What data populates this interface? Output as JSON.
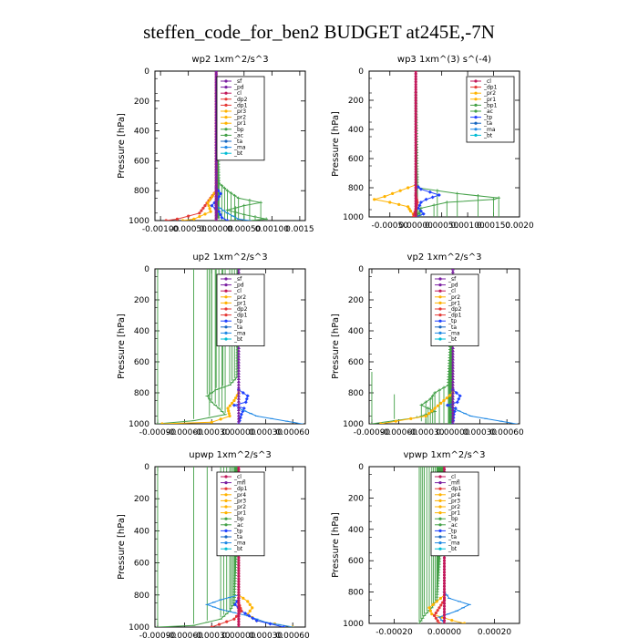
{
  "page_title": "steffen_code_for_ben2  BUDGET at245E,-7N",
  "colors": {
    "sf": "#7a1fa2",
    "pd": "#7a1fa2",
    "cl": "#c2185b",
    "dp": "#e53935",
    "pr": "#ffb300",
    "bp": "#43a047",
    "ac": "#2e7d32",
    "tp": "#1e40ff",
    "ta": "#1565c0",
    "ma": "#1e88e5",
    "bt": "#00bcd4",
    "mfl": "#6a1b9a"
  },
  "chart_data": [
    {
      "id": "wp2",
      "type": "line",
      "title": "wp2   1xm^2/s^3",
      "ylabel": "Pressure [hPa]",
      "ylim": [
        1000,
        0
      ],
      "xlim": [
        -0.0011,
        0.0016
      ],
      "yticks": [
        0,
        200,
        400,
        600,
        800,
        1000
      ],
      "xticks": [
        -0.001,
        -0.0005,
        0,
        0.0005,
        0.001,
        0.0015
      ],
      "xtick_labels": [
        "-0.00100",
        "-0.00050",
        "0.00000",
        "0.00050",
        "0.00100",
        "0.0015"
      ],
      "legend": [
        "_sf",
        "_pd",
        "_cl",
        "_dp2",
        "_dp1",
        "_pr3",
        "_pr2",
        "_pr1",
        "_bp",
        "_ac",
        "_ta",
        "_ma",
        "_bt"
      ],
      "series": [
        {
          "key": "bp",
          "y": [
            150,
            750,
            800,
            850,
            880,
            900,
            930,
            960,
            990,
            1000
          ],
          "x": [
            0,
            5e-05,
            0.0002,
            0.0004,
            0.0008,
            0.0005,
            0.0002,
            0.0005,
            0.0009,
            0.0006
          ]
        },
        {
          "key": "dp",
          "y": [
            800,
            850,
            900,
            950,
            990,
            1000
          ],
          "x": [
            0,
            -0.0001,
            -0.0002,
            -0.0003,
            -0.0007,
            -0.0009
          ]
        },
        {
          "key": "pr",
          "y": [
            800,
            880,
            940,
            990,
            1000
          ],
          "x": [
            0,
            -0.00015,
            -0.0001,
            -0.0004,
            -0.0006
          ]
        },
        {
          "key": "tp",
          "y": [
            780,
            820,
            860,
            900,
            940,
            980,
            1000
          ],
          "x": [
            0,
            8e-05,
            2e-05,
            -8e-05,
            5e-05,
            0.0001,
            0.0002
          ]
        },
        {
          "key": "ma",
          "y": [
            900,
            950,
            990,
            1000
          ],
          "x": [
            0,
            0.0002,
            0.0004,
            0.0006
          ]
        },
        {
          "key": "cl",
          "y": [
            0,
            200,
            400,
            600,
            800,
            1000
          ],
          "x": [
            0,
            0,
            0,
            0,
            0,
            0
          ]
        },
        {
          "key": "sf",
          "y": [
            0,
            200,
            400,
            600,
            800,
            1000
          ],
          "x": [
            0,
            0,
            0,
            0,
            0,
            0
          ]
        }
      ]
    },
    {
      "id": "wp3",
      "type": "line",
      "title": "wp3   1xm^(3) s^(-4)",
      "ylabel": "Pressure [hPa]",
      "ylim": [
        1000,
        0
      ],
      "xlim": [
        -0.0009,
        0.002
      ],
      "yticks": [
        0,
        200,
        400,
        600,
        800,
        1000
      ],
      "xticks": [
        -0.0005,
        0,
        0.0005,
        0.001,
        0.0015,
        0.002
      ],
      "xtick_labels": [
        "-0.00050",
        "0.00000",
        "0.00050",
        "0.00100",
        "0.00150",
        "0.0020"
      ],
      "legend": [
        "_cl",
        "_dp1",
        "_pr2",
        "_pr1",
        "_bp1",
        "_ac",
        "_tp",
        "_ta",
        "_ma",
        "_bt"
      ],
      "series": [
        {
          "key": "bp",
          "y": [
            150,
            800,
            840,
            870,
            880,
            900,
            940,
            980,
            1000
          ],
          "x": [
            0,
            3e-05,
            0.0008,
            0.0016,
            0.0015,
            0.0006,
            0.0001,
            5e-05,
            0
          ],
          "comment": ""
        },
        {
          "key": "pr",
          "y": [
            780,
            820,
            860,
            880,
            900,
            930,
            960,
            1000
          ],
          "x": [
            0,
            -0.0003,
            -0.0006,
            -0.0008,
            -0.0005,
            -0.00015,
            -0.0001,
            0
          ]
        },
        {
          "key": "tp",
          "y": [
            780,
            810,
            850,
            880,
            900,
            940,
            980,
            1000
          ],
          "x": [
            0,
            0.0001,
            0.00045,
            0.0002,
            0.0001,
            5e-05,
            0.00015,
            0
          ]
        },
        {
          "key": "dp",
          "y": [
            850,
            900,
            950,
            1000
          ],
          "x": [
            0,
            3e-05,
            0,
            -5e-05
          ]
        },
        {
          "key": "cl",
          "y": [
            0,
            200,
            400,
            600,
            800,
            1000
          ],
          "x": [
            0,
            0,
            0,
            0,
            0,
            0
          ]
        }
      ]
    },
    {
      "id": "up2",
      "type": "line",
      "title": "up2   1xm^2/s^3",
      "ylabel": "Pressure [hPa]",
      "ylim": [
        1000,
        0
      ],
      "xlim": [
        -0.00093,
        0.00074
      ],
      "yticks": [
        0,
        200,
        400,
        600,
        800,
        1000
      ],
      "xticks": [
        -0.0009,
        -0.0006,
        -0.0003,
        0,
        0.0003,
        0.0006
      ],
      "xtick_labels": [
        "-0.00090",
        "-0.00060",
        "-0.00030",
        "0.00000",
        "0.00030",
        "0.00060"
      ],
      "legend": [
        "_sf",
        "_pd",
        "_cl",
        "_pr2",
        "_pr1",
        "_dp2",
        "_dp1",
        "_tp",
        "_ta",
        "_ma",
        "_bt"
      ],
      "series": [
        {
          "key": "bp",
          "y": [
            150,
            700,
            750,
            780,
            820,
            860,
            900,
            940,
            980,
            1000
          ],
          "x": [
            0,
            -2e-05,
            -0.0001,
            -0.00025,
            -0.00035,
            -0.0003,
            -0.00022,
            -0.00015,
            -0.0005,
            -0.0009
          ]
        },
        {
          "key": "pr",
          "y": [
            800,
            850,
            900,
            950,
            990,
            1000
          ],
          "x": [
            0,
            -5e-05,
            -0.00012,
            -0.0001,
            -0.0003,
            -0.00085
          ]
        },
        {
          "key": "tp",
          "y": [
            780,
            820,
            860,
            880,
            900,
            940,
            980,
            1000
          ],
          "x": [
            0,
            0.0001,
            8e-05,
            -5e-05,
            6e-05,
            3e-05,
            1e-05,
            0
          ]
        },
        {
          "key": "ma",
          "y": [
            900,
            950,
            1000
          ],
          "x": [
            0,
            0.0002,
            0.0007
          ]
        },
        {
          "key": "sf",
          "y": [
            0,
            200,
            400,
            600,
            800,
            1000
          ],
          "x": [
            0,
            0,
            0,
            0,
            0,
            0
          ]
        }
      ]
    },
    {
      "id": "vp2",
      "type": "line",
      "title": "vp2   1xm^2/s^3",
      "ylabel": "Pressure [hPa]",
      "ylim": [
        1000,
        0
      ],
      "xlim": [
        -0.00093,
        0.00074
      ],
      "yticks": [
        0,
        200,
        400,
        600,
        800,
        1000
      ],
      "xticks": [
        -0.0009,
        -0.0006,
        -0.0003,
        0,
        0.0003,
        0.0006
      ],
      "xtick_labels": [
        "-0.00090",
        "-0.00060",
        "-0.00030",
        "0.00000",
        "0.00030",
        "0.00060"
      ],
      "legend": [
        "_sf",
        "_pd",
        "_cl",
        "_pr2",
        "_pr1",
        "_dp2",
        "_dp1",
        "_tp",
        "_ta",
        "_ma",
        "_bt"
      ],
      "series": [
        {
          "key": "bp",
          "y": [
            150,
            750,
            800,
            840,
            880,
            920,
            960,
            1000
          ],
          "x": [
            0,
            -5e-05,
            -0.0002,
            -0.00025,
            -0.00035,
            -0.0002,
            -0.0004,
            -0.0009
          ]
        },
        {
          "key": "pr",
          "y": [
            800,
            850,
            900,
            950,
            1000
          ],
          "x": [
            0,
            -0.0001,
            -0.0002,
            -0.0003,
            -0.0008
          ]
        },
        {
          "key": "tp",
          "y": [
            780,
            820,
            860,
            880,
            900,
            940,
            1000
          ],
          "x": [
            0,
            8e-05,
            5e-05,
            -6e-05,
            3e-05,
            1e-05,
            0
          ]
        },
        {
          "key": "ma",
          "y": [
            900,
            950,
            1000
          ],
          "x": [
            0,
            0.0002,
            0.0007
          ]
        },
        {
          "key": "sf",
          "y": [
            0,
            200,
            400,
            600,
            800,
            1000
          ],
          "x": [
            0,
            0,
            0,
            0,
            0,
            0
          ]
        }
      ]
    },
    {
      "id": "upwp",
      "type": "line",
      "title": "upwp   1xm^2/s^3",
      "ylabel": "Pressure [hPa]",
      "ylim": [
        1000,
        0
      ],
      "xlim": [
        -0.00093,
        0.00074
      ],
      "yticks": [
        0,
        200,
        400,
        600,
        800,
        1000
      ],
      "xticks": [
        -0.0009,
        -0.0006,
        -0.0003,
        0,
        0.0003,
        0.0006
      ],
      "xtick_labels": [
        "-0.00090",
        "-0.00060",
        "-0.00030",
        "0.00000",
        "0.00030",
        "0.00060"
      ],
      "legend": [
        "_cl",
        "_mfl",
        "_dp1",
        "_pr4",
        "_pr3",
        "_pr2",
        "_pr1",
        "_bp",
        "_ac",
        "_tp",
        "_ta",
        "_ma",
        "_bt"
      ],
      "series": [
        {
          "key": "bp",
          "y": [
            150,
            850,
            900,
            950,
            990,
            1000
          ],
          "x": [
            0,
            -5e-05,
            -0.0001,
            -0.0002,
            -0.0005,
            -0.0009
          ]
        },
        {
          "key": "pr",
          "y": [
            800,
            840,
            880,
            920,
            960,
            1000
          ],
          "x": [
            0,
            0.0001,
            0.00015,
            0.0001,
            0.0002,
            0.0006
          ]
        },
        {
          "key": "ma",
          "y": [
            800,
            830,
            860,
            890,
            930,
            970,
            1000
          ],
          "x": [
            0,
            -0.0002,
            -0.00035,
            -0.0002,
            0.0001,
            0.0003,
            0.0006
          ]
        },
        {
          "key": "tp",
          "y": [
            820,
            860,
            900,
            960,
            1000
          ],
          "x": [
            0,
            -4e-05,
            3e-05,
            0.0002,
            0.0005
          ]
        },
        {
          "key": "dp",
          "y": [
            850,
            900,
            950,
            1000
          ],
          "x": [
            0,
            3e-05,
            -5e-05,
            -0.0003
          ]
        },
        {
          "key": "cl",
          "y": [
            0,
            200,
            400,
            600,
            800,
            1000
          ],
          "x": [
            0,
            0,
            0,
            0,
            0,
            0
          ]
        }
      ]
    },
    {
      "id": "vpwp",
      "type": "line",
      "title": "vpwp   1xm^2/s^3",
      "ylabel": "Pressure [hPa]",
      "ylim": [
        1000,
        0
      ],
      "xlim": [
        -0.0003,
        0.0003
      ],
      "yticks": [
        0,
        200,
        400,
        600,
        800,
        1000
      ],
      "xticks": [
        -0.0002,
        0,
        0.0002
      ],
      "xtick_labels": [
        "-0.00020",
        "0.00000",
        "0.00020"
      ],
      "legend": [
        "_cl",
        "_mfl",
        "_dp1",
        "_pr4",
        "_pr3",
        "_pr2",
        "_pr1",
        "_bp",
        "_ac",
        "_tp",
        "_ta",
        "_ma",
        "_bt"
      ],
      "series": [
        {
          "key": "bt",
          "y": [
            100,
            140,
            180,
            200
          ],
          "x": [
            0,
            -2e-05,
            -1e-05,
            0
          ]
        },
        {
          "key": "bp",
          "y": [
            150,
            850,
            900,
            950,
            1000
          ],
          "x": [
            0,
            -3e-05,
            -5e-05,
            -8e-05,
            -0.0001
          ]
        },
        {
          "key": "pr",
          "y": [
            820,
            860,
            900,
            940,
            980,
            1000
          ],
          "x": [
            0,
            -3e-05,
            -6e-05,
            -5e-05,
            3e-05,
            8e-05
          ]
        },
        {
          "key": "ma",
          "y": [
            800,
            840,
            880,
            920,
            960,
            1000
          ],
          "x": [
            0,
            2e-05,
            0.0001,
            5e-05,
            -2e-05,
            0
          ]
        },
        {
          "key": "dp",
          "y": [
            850,
            900,
            950,
            1000
          ],
          "x": [
            0,
            -2e-05,
            -4e-05,
            -2e-05
          ]
        },
        {
          "key": "cl",
          "y": [
            0,
            200,
            400,
            600,
            800,
            1000
          ],
          "x": [
            0,
            0,
            0,
            0,
            0,
            0
          ]
        }
      ]
    }
  ]
}
